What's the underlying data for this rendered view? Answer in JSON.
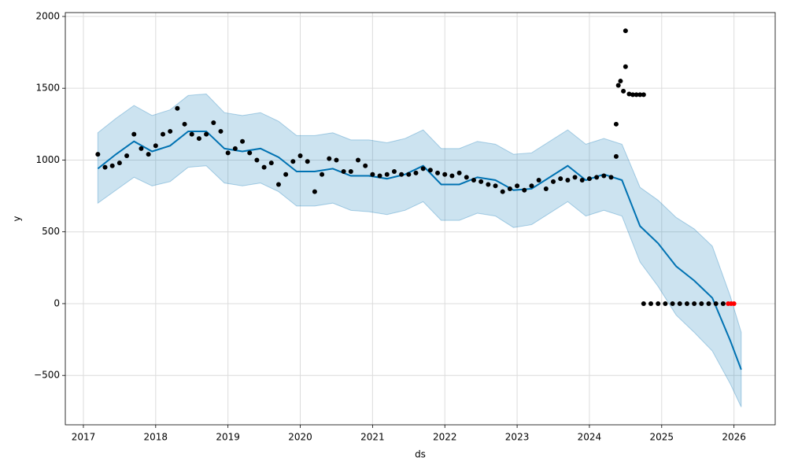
{
  "chart_data": {
    "type": "line",
    "xlabel": "ds",
    "ylabel": "y",
    "xlim": [
      2016.75,
      2026.57
    ],
    "ylim": [
      -844,
      2027
    ],
    "xticks": [
      2017,
      2018,
      2019,
      2020,
      2021,
      2022,
      2023,
      2024,
      2025,
      2026
    ],
    "yticks": [
      {
        "value": -500,
        "label": "−500"
      },
      0,
      500,
      1000,
      1500,
      2000
    ],
    "grid": true,
    "band": {
      "color": "#0072b2",
      "opacity": 0.2,
      "x": [
        2017.2,
        2017.45,
        2017.7,
        2017.95,
        2018.2,
        2018.45,
        2018.7,
        2018.95,
        2019.2,
        2019.45,
        2019.7,
        2019.95,
        2020.2,
        2020.45,
        2020.7,
        2020.95,
        2021.2,
        2021.45,
        2021.7,
        2021.95,
        2022.2,
        2022.45,
        2022.7,
        2022.95,
        2023.2,
        2023.45,
        2023.7,
        2023.95,
        2024.2,
        2024.45,
        2024.7,
        2024.95,
        2025.2,
        2025.45,
        2025.7,
        2025.95,
        2026.1
      ],
      "lower": [
        700,
        790,
        880,
        820,
        850,
        950,
        960,
        840,
        820,
        840,
        780,
        680,
        680,
        700,
        650,
        640,
        620,
        650,
        710,
        580,
        580,
        630,
        610,
        530,
        550,
        630,
        710,
        610,
        650,
        610,
        290,
        120,
        -80,
        -200,
        -330,
        -560,
        -720
      ],
      "upper": [
        1190,
        1290,
        1380,
        1310,
        1350,
        1450,
        1460,
        1330,
        1310,
        1330,
        1270,
        1170,
        1170,
        1190,
        1140,
        1140,
        1120,
        1150,
        1210,
        1080,
        1080,
        1130,
        1110,
        1040,
        1050,
        1130,
        1210,
        1110,
        1150,
        1110,
        810,
        720,
        600,
        520,
        400,
        50,
        -200
      ]
    },
    "series": [
      {
        "color": "#0072b2",
        "x": [
          2017.2,
          2017.45,
          2017.7,
          2017.95,
          2018.2,
          2018.45,
          2018.7,
          2018.95,
          2019.2,
          2019.45,
          2019.7,
          2019.95,
          2020.2,
          2020.45,
          2020.7,
          2020.95,
          2021.2,
          2021.45,
          2021.7,
          2021.95,
          2022.2,
          2022.45,
          2022.7,
          2022.95,
          2023.2,
          2023.45,
          2023.7,
          2023.95,
          2024.2,
          2024.45,
          2024.7,
          2024.95,
          2025.2,
          2025.45,
          2025.7,
          2025.95,
          2026.1
        ],
        "values": [
          940,
          1040,
          1130,
          1060,
          1100,
          1200,
          1200,
          1080,
          1060,
          1080,
          1020,
          920,
          920,
          940,
          890,
          890,
          870,
          900,
          960,
          830,
          830,
          880,
          860,
          790,
          800,
          880,
          960,
          860,
          900,
          860,
          540,
          420,
          260,
          160,
          40,
          -260,
          -460
        ]
      }
    ],
    "points": [
      {
        "color": "#000000",
        "x": [
          2017.2,
          2017.3,
          2017.4,
          2017.5,
          2017.6,
          2017.7,
          2017.8,
          2017.9,
          2018.0,
          2018.1,
          2018.2,
          2018.3,
          2018.4,
          2018.5,
          2018.6,
          2018.7,
          2018.8,
          2018.9,
          2019.0,
          2019.1,
          2019.2,
          2019.3,
          2019.4,
          2019.5,
          2019.6,
          2019.7,
          2019.8,
          2019.9,
          2020.0,
          2020.1,
          2020.2,
          2020.3,
          2020.4,
          2020.5,
          2020.6,
          2020.7,
          2020.8,
          2020.9,
          2021.0,
          2021.1,
          2021.2,
          2021.3,
          2021.4,
          2021.5,
          2021.6,
          2021.7,
          2021.8,
          2021.9,
          2022.0,
          2022.1,
          2022.2,
          2022.3,
          2022.4,
          2022.5,
          2022.6,
          2022.7,
          2022.8,
          2022.9,
          2023.0,
          2023.1,
          2023.2,
          2023.3,
          2023.4,
          2023.5,
          2023.6,
          2023.7,
          2023.8,
          2023.9,
          2024.0,
          2024.1,
          2024.2,
          2024.3,
          2024.37,
          2024.37,
          2024.4,
          2024.43,
          2024.47,
          2024.5,
          2024.5,
          2024.55,
          2024.6,
          2024.65,
          2024.7,
          2024.75,
          2024.75,
          2024.85,
          2024.95,
          2025.05,
          2025.15,
          2025.25,
          2025.35,
          2025.45,
          2025.55,
          2025.65,
          2025.75,
          2025.85
        ],
        "values": [
          1040,
          950,
          960,
          980,
          1030,
          1180,
          1080,
          1040,
          1100,
          1180,
          1200,
          1360,
          1250,
          1180,
          1150,
          1180,
          1260,
          1200,
          1050,
          1080,
          1130,
          1050,
          1000,
          950,
          980,
          830,
          900,
          990,
          1030,
          990,
          780,
          900,
          1010,
          1000,
          920,
          920,
          1000,
          960,
          900,
          890,
          900,
          920,
          900,
          900,
          910,
          940,
          930,
          910,
          900,
          890,
          910,
          880,
          860,
          850,
          830,
          820,
          780,
          800,
          820,
          790,
          820,
          860,
          800,
          850,
          870,
          860,
          880,
          860,
          870,
          880,
          890,
          880,
          1250,
          1025,
          1520,
          1550,
          1480,
          1900,
          1650,
          1460,
          1455,
          1455,
          1455,
          1455,
          0,
          0,
          0,
          0,
          0,
          0,
          0,
          0,
          0,
          0,
          0,
          0
        ]
      },
      {
        "color": "#ff0000",
        "x": [
          2025.92,
          2025.96,
          2026.0
        ],
        "values": [
          0,
          0,
          0
        ]
      }
    ]
  }
}
